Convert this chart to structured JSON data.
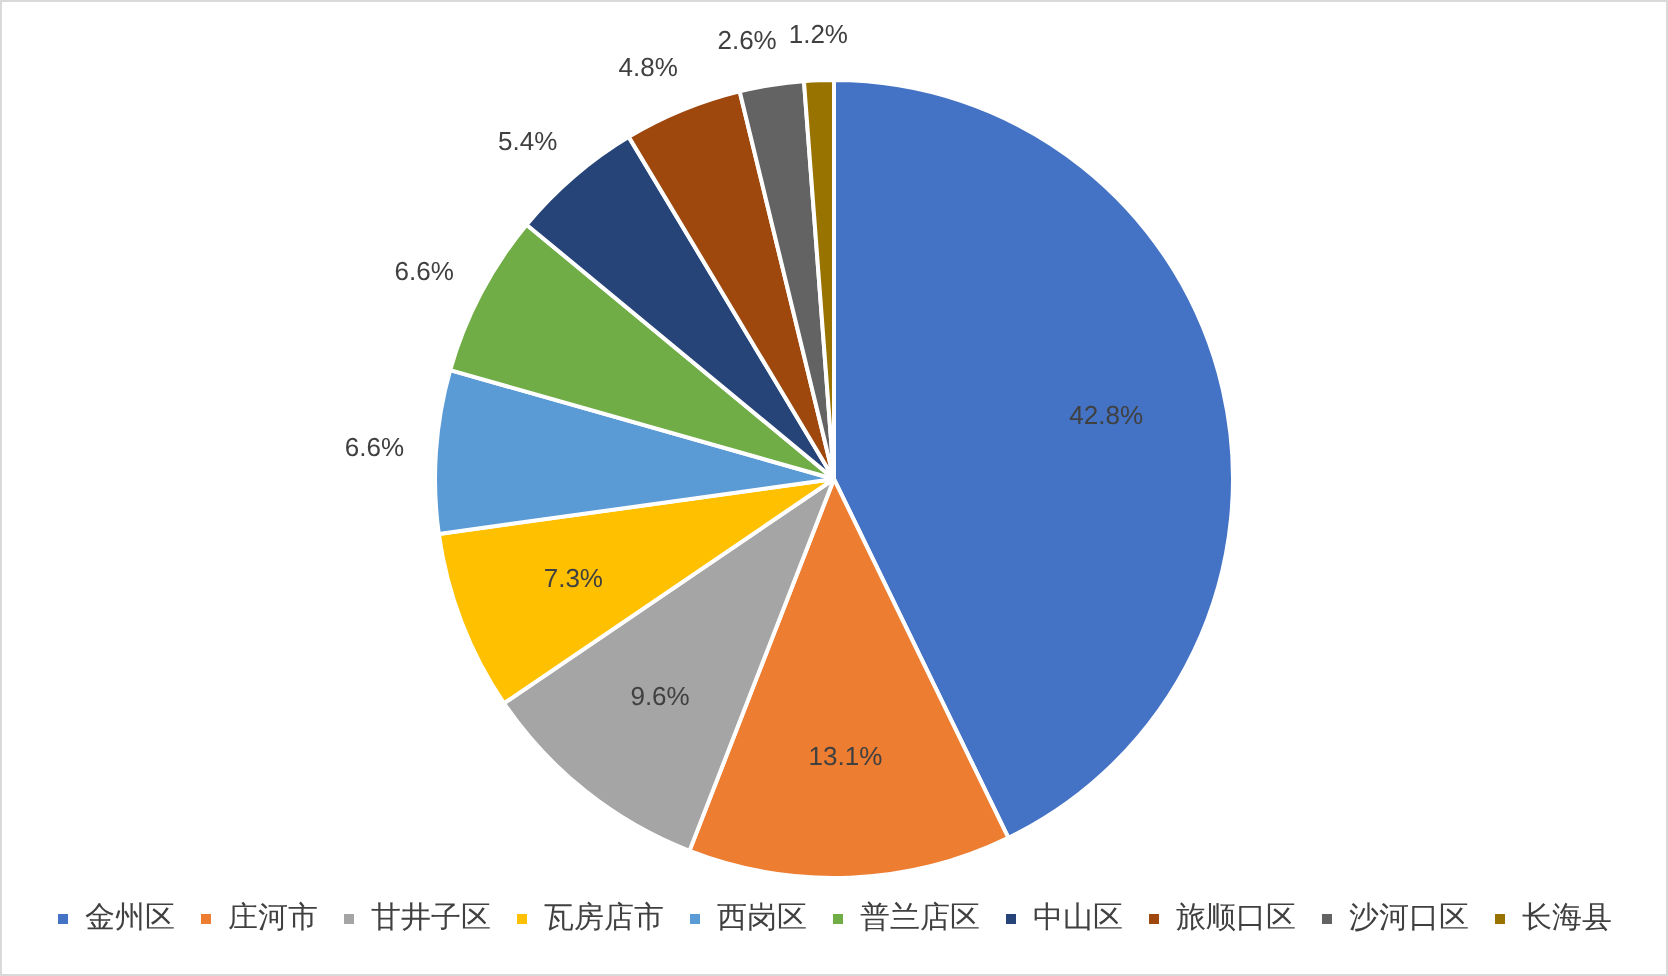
{
  "chart_data": {
    "type": "pie",
    "categories": [
      "金州区",
      "庄河市",
      "甘井子区",
      "瓦房店市",
      "西岗区",
      "普兰店区",
      "中山区",
      "旅顺口区",
      "沙河口区",
      "长海县"
    ],
    "values": [
      42.8,
      13.1,
      9.6,
      7.3,
      6.6,
      6.6,
      5.4,
      4.8,
      2.6,
      1.2
    ],
    "colors": [
      "#4472c4",
      "#ed7d31",
      "#a5a5a5",
      "#ffc000",
      "#5b9bd5",
      "#70ad47",
      "#264478",
      "#9e480e",
      "#636363",
      "#997300"
    ],
    "value_labels": [
      "42.8%",
      "13.1%",
      "9.6%",
      "7.3%",
      "6.6%",
      "6.6%",
      "5.4%",
      "4.8%",
      "2.6%",
      "1.2%"
    ],
    "legend": "bottom"
  }
}
